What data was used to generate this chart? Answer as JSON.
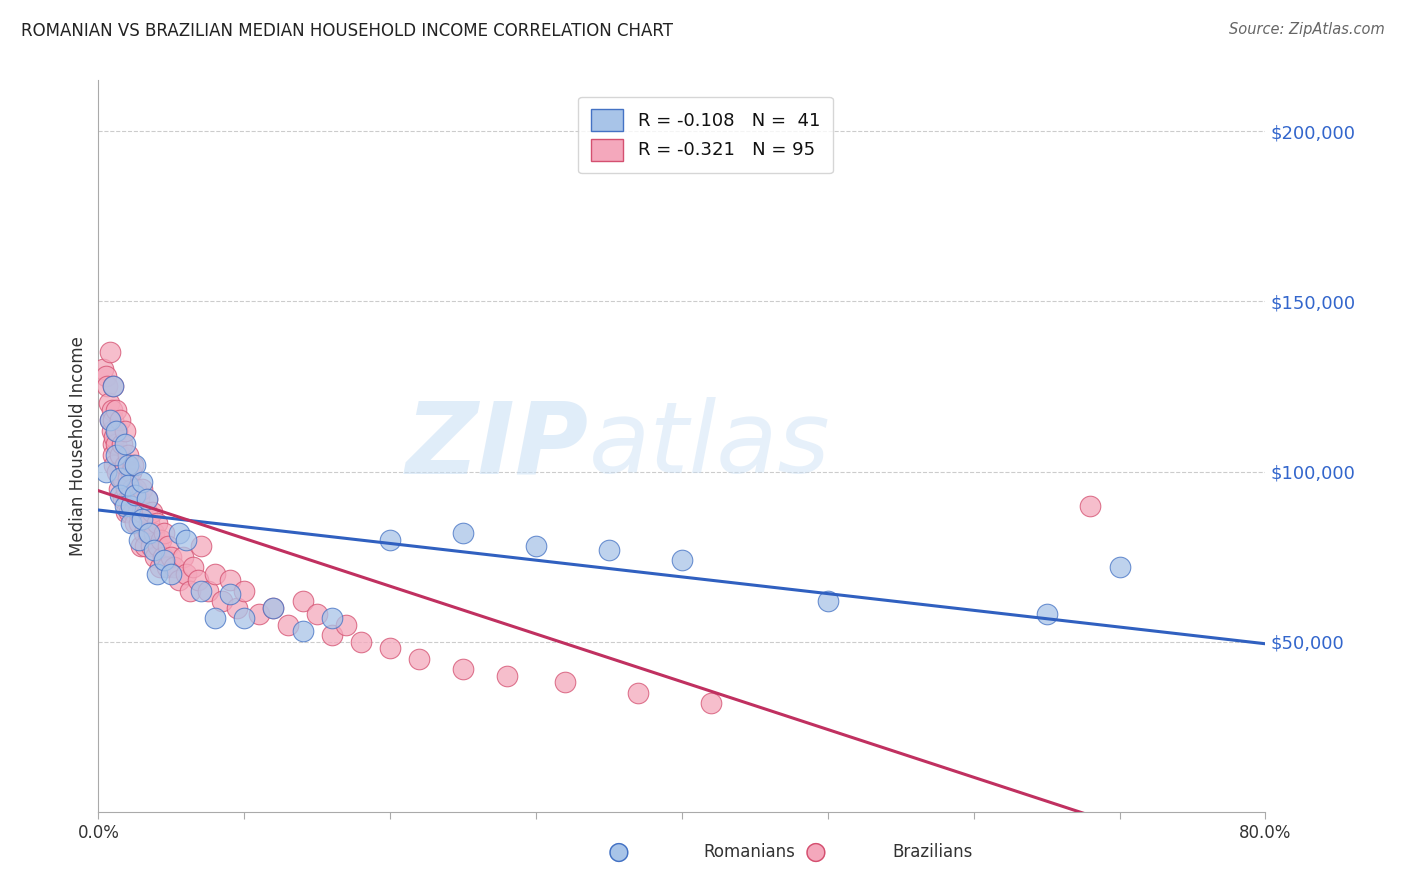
{
  "title": "ROMANIAN VS BRAZILIAN MEDIAN HOUSEHOLD INCOME CORRELATION CHART",
  "source": "Source: ZipAtlas.com",
  "ylabel": "Median Household Income",
  "ytick_values": [
    50000,
    100000,
    150000,
    200000
  ],
  "ylim": [
    0,
    215000
  ],
  "xlim": [
    0.0,
    0.8
  ],
  "watermark_zip": "ZIP",
  "watermark_atlas": "atlas",
  "romanian_color": "#a8c4e8",
  "brazilian_color": "#f4a8bc",
  "romanian_edge_color": "#4472c4",
  "brazilian_edge_color": "#d45070",
  "romanian_line_color": "#3060c0",
  "brazilian_line_color": "#c03060",
  "legend_r_ro": "R = -0.108",
  "legend_n_ro": "N =  41",
  "legend_r_br": "R = -0.321",
  "legend_n_br": "N = 95",
  "romania_x": [
    0.005,
    0.008,
    0.01,
    0.012,
    0.012,
    0.015,
    0.015,
    0.018,
    0.018,
    0.02,
    0.02,
    0.022,
    0.022,
    0.025,
    0.025,
    0.028,
    0.03,
    0.03,
    0.033,
    0.035,
    0.038,
    0.04,
    0.045,
    0.05,
    0.055,
    0.06,
    0.07,
    0.08,
    0.09,
    0.1,
    0.12,
    0.14,
    0.16,
    0.2,
    0.25,
    0.3,
    0.35,
    0.4,
    0.5,
    0.65,
    0.7
  ],
  "romania_y": [
    100000,
    115000,
    125000,
    112000,
    105000,
    98000,
    93000,
    108000,
    90000,
    102000,
    96000,
    90000,
    85000,
    102000,
    93000,
    80000,
    97000,
    86000,
    92000,
    82000,
    77000,
    70000,
    74000,
    70000,
    82000,
    80000,
    65000,
    57000,
    64000,
    57000,
    60000,
    53000,
    57000,
    80000,
    82000,
    78000,
    77000,
    74000,
    62000,
    58000,
    72000
  ],
  "brazil_x": [
    0.003,
    0.005,
    0.006,
    0.007,
    0.008,
    0.008,
    0.009,
    0.009,
    0.01,
    0.01,
    0.01,
    0.01,
    0.011,
    0.011,
    0.012,
    0.012,
    0.013,
    0.013,
    0.014,
    0.015,
    0.015,
    0.016,
    0.016,
    0.017,
    0.018,
    0.018,
    0.019,
    0.019,
    0.02,
    0.02,
    0.02,
    0.021,
    0.022,
    0.022,
    0.023,
    0.024,
    0.024,
    0.025,
    0.025,
    0.026,
    0.027,
    0.028,
    0.028,
    0.029,
    0.03,
    0.03,
    0.031,
    0.032,
    0.033,
    0.033,
    0.034,
    0.035,
    0.036,
    0.037,
    0.038,
    0.039,
    0.04,
    0.041,
    0.042,
    0.043,
    0.044,
    0.045,
    0.047,
    0.048,
    0.05,
    0.052,
    0.055,
    0.058,
    0.06,
    0.063,
    0.065,
    0.068,
    0.07,
    0.075,
    0.08,
    0.085,
    0.09,
    0.095,
    0.1,
    0.11,
    0.12,
    0.13,
    0.14,
    0.15,
    0.16,
    0.17,
    0.18,
    0.2,
    0.22,
    0.25,
    0.28,
    0.32,
    0.37,
    0.42,
    0.68
  ],
  "brazil_y": [
    130000,
    128000,
    125000,
    120000,
    135000,
    115000,
    118000,
    112000,
    108000,
    125000,
    105000,
    115000,
    110000,
    102000,
    118000,
    108000,
    100000,
    112000,
    95000,
    105000,
    115000,
    98000,
    108000,
    92000,
    102000,
    112000,
    95000,
    88000,
    98000,
    105000,
    92000,
    88000,
    100000,
    93000,
    95000,
    88000,
    102000,
    92000,
    85000,
    95000,
    88000,
    92000,
    85000,
    78000,
    95000,
    88000,
    82000,
    78000,
    88000,
    92000,
    82000,
    85000,
    78000,
    88000,
    82000,
    75000,
    85000,
    78000,
    72000,
    80000,
    75000,
    82000,
    72000,
    78000,
    75000,
    72000,
    68000,
    75000,
    70000,
    65000,
    72000,
    68000,
    78000,
    65000,
    70000,
    62000,
    68000,
    60000,
    65000,
    58000,
    60000,
    55000,
    62000,
    58000,
    52000,
    55000,
    50000,
    48000,
    45000,
    42000,
    40000,
    38000,
    35000,
    32000,
    90000
  ]
}
